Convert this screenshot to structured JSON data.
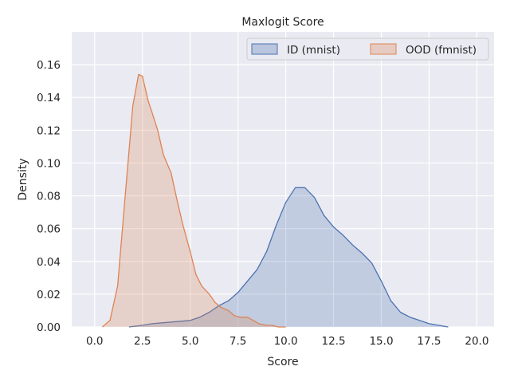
{
  "chart_data": {
    "type": "area",
    "title": "Maxlogit Score",
    "xlabel": "Score",
    "ylabel": "Density",
    "xlim": [
      -1.2,
      20.9
    ],
    "ylim": [
      0,
      0.18
    ],
    "xticks": [
      0,
      2.5,
      5,
      7.5,
      10,
      12.5,
      15,
      17.5,
      20
    ],
    "xtick_labels": [
      "0.0",
      "2.5",
      "5.0",
      "7.5",
      "10.0",
      "12.5",
      "15.0",
      "17.5",
      "20.0"
    ],
    "yticks": [
      0,
      0.02,
      0.04,
      0.06,
      0.08,
      0.1,
      0.12,
      0.14,
      0.16
    ],
    "ytick_labels": [
      "0.00",
      "0.02",
      "0.04",
      "0.06",
      "0.08",
      "0.10",
      "0.12",
      "0.14",
      "0.16"
    ],
    "grid": true,
    "legend_position": "top-right",
    "series": [
      {
        "name": "ID (mnist)",
        "color": "#4c72b0",
        "x": [
          1.8,
          2.5,
          3.0,
          4.0,
          5.0,
          5.5,
          6.0,
          6.5,
          7.0,
          7.5,
          8.0,
          8.5,
          9.0,
          9.5,
          10.0,
          10.5,
          11.0,
          11.5,
          12.0,
          12.5,
          13.0,
          13.5,
          14.0,
          14.5,
          15.0,
          15.5,
          16.0,
          16.5,
          17.0,
          17.5,
          18.0,
          18.5
        ],
        "y": [
          0.0,
          0.001,
          0.002,
          0.003,
          0.004,
          0.006,
          0.009,
          0.013,
          0.016,
          0.021,
          0.028,
          0.035,
          0.046,
          0.062,
          0.076,
          0.085,
          0.085,
          0.079,
          0.068,
          0.061,
          0.056,
          0.05,
          0.045,
          0.039,
          0.028,
          0.016,
          0.009,
          0.006,
          0.004,
          0.002,
          0.001,
          0.0
        ]
      },
      {
        "name": "OOD (fmnist)",
        "color": "#dd8452",
        "x": [
          0.4,
          0.8,
          1.2,
          1.6,
          2.0,
          2.3,
          2.5,
          2.8,
          3.0,
          3.3,
          3.6,
          4.0,
          4.3,
          4.6,
          5.0,
          5.3,
          5.6,
          6.0,
          6.3,
          6.6,
          7.0,
          7.3,
          7.6,
          8.0,
          8.3,
          8.6,
          9.0,
          9.3,
          9.6,
          10.0
        ],
        "y": [
          0.0,
          0.004,
          0.025,
          0.08,
          0.135,
          0.154,
          0.153,
          0.138,
          0.131,
          0.12,
          0.105,
          0.094,
          0.078,
          0.063,
          0.046,
          0.032,
          0.025,
          0.02,
          0.015,
          0.012,
          0.01,
          0.007,
          0.006,
          0.006,
          0.004,
          0.002,
          0.001,
          0.001,
          0.0,
          0.0
        ]
      }
    ]
  }
}
